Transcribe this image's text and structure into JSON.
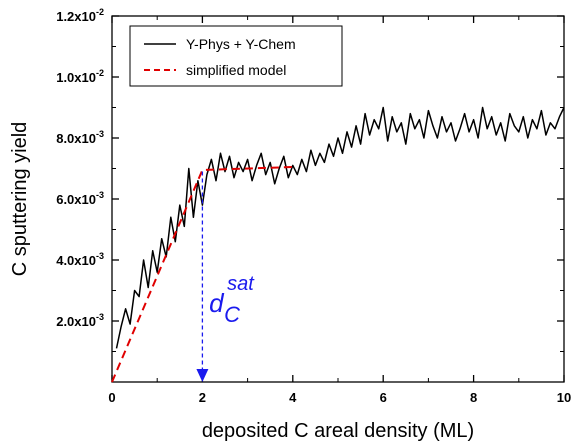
{
  "chart_data": {
    "type": "line",
    "title": "",
    "xlabel": "deposited C areal density (ML)",
    "ylabel": "C sputtering  yield",
    "xlim": [
      0,
      10
    ],
    "ylim": [
      0,
      0.012
    ],
    "x_ticks": [
      0,
      2,
      4,
      6,
      8,
      10
    ],
    "x_tick_labels": [
      "0",
      "2",
      "4",
      "6",
      "8",
      "10"
    ],
    "y_ticks": [
      0.002,
      0.004,
      0.006,
      0.008,
      0.01,
      0.012
    ],
    "y_tick_labels": [
      {
        "mantissa": "2.0x10",
        "exp": "-3"
      },
      {
        "mantissa": "4.0x10",
        "exp": "-3"
      },
      {
        "mantissa": "6.0x10",
        "exp": "-3"
      },
      {
        "mantissa": "8.0x10",
        "exp": "-3"
      },
      {
        "mantissa": "1.0x10",
        "exp": "-2"
      },
      {
        "mantissa": "1.2x10",
        "exp": "-2"
      }
    ],
    "grid": false,
    "legend_position": "top-left",
    "series": [
      {
        "name": "Y-Phys + Y-Chem",
        "color": "#000000",
        "style": "solid",
        "x": [
          0.1,
          0.2,
          0.3,
          0.4,
          0.5,
          0.6,
          0.7,
          0.8,
          0.9,
          1.0,
          1.1,
          1.2,
          1.3,
          1.4,
          1.5,
          1.6,
          1.7,
          1.8,
          1.9,
          2.0,
          2.1,
          2.2,
          2.3,
          2.4,
          2.5,
          2.6,
          2.7,
          2.8,
          2.9,
          3.0,
          3.1,
          3.2,
          3.3,
          3.4,
          3.5,
          3.6,
          3.7,
          3.8,
          3.9,
          4.0,
          4.1,
          4.2,
          4.3,
          4.4,
          4.5,
          4.6,
          4.7,
          4.8,
          4.9,
          5.0,
          5.1,
          5.2,
          5.3,
          5.4,
          5.5,
          5.6,
          5.7,
          5.8,
          5.9,
          6.0,
          6.1,
          6.2,
          6.3,
          6.4,
          6.5,
          6.6,
          6.7,
          6.8,
          6.9,
          7.0,
          7.1,
          7.2,
          7.3,
          7.4,
          7.5,
          7.6,
          7.7,
          7.8,
          7.9,
          8.0,
          8.1,
          8.2,
          8.3,
          8.4,
          8.5,
          8.6,
          8.7,
          8.8,
          8.9,
          9.0,
          9.1,
          9.2,
          9.3,
          9.4,
          9.5,
          9.6,
          9.7,
          9.8,
          9.9,
          10.0
        ],
        "y": [
          0.0011,
          0.0018,
          0.0024,
          0.0019,
          0.003,
          0.0028,
          0.004,
          0.0031,
          0.0043,
          0.0036,
          0.0047,
          0.0041,
          0.0054,
          0.0046,
          0.0058,
          0.0051,
          0.007,
          0.0054,
          0.0066,
          0.0058,
          0.0068,
          0.0073,
          0.0066,
          0.0075,
          0.0069,
          0.0074,
          0.0067,
          0.0072,
          0.0069,
          0.0073,
          0.0066,
          0.0071,
          0.0075,
          0.0068,
          0.0072,
          0.0065,
          0.007,
          0.0074,
          0.0067,
          0.0071,
          0.0068,
          0.0073,
          0.0069,
          0.0076,
          0.0071,
          0.0075,
          0.0072,
          0.0078,
          0.0074,
          0.008,
          0.0075,
          0.0082,
          0.0077,
          0.0084,
          0.0078,
          0.0088,
          0.0081,
          0.0086,
          0.0083,
          0.009,
          0.0079,
          0.0087,
          0.0082,
          0.0085,
          0.0078,
          0.0088,
          0.0083,
          0.0086,
          0.008,
          0.0089,
          0.0084,
          0.008,
          0.0087,
          0.0082,
          0.0085,
          0.0079,
          0.0083,
          0.0088,
          0.0082,
          0.0086,
          0.008,
          0.009,
          0.0083,
          0.0087,
          0.0081,
          0.0085,
          0.0079,
          0.0088,
          0.0084,
          0.0082,
          0.0087,
          0.008,
          0.0086,
          0.0083,
          0.0089,
          0.0081,
          0.0085,
          0.0083,
          0.0087,
          0.009
        ]
      },
      {
        "name": "simplified model",
        "color": "#e00000",
        "style": "dashed",
        "x": [
          0,
          2,
          4
        ],
        "y": [
          0,
          0.00695,
          0.00705
        ]
      }
    ],
    "annotations": [
      {
        "type": "arrow",
        "color": "#1a1aee",
        "style": "dashed",
        "x": 2.0,
        "y_from": 0.0069,
        "y_to": 0.0
      },
      {
        "type": "label",
        "color": "#1a1aee",
        "text": "d",
        "subscript": "C",
        "superscript": "sat",
        "x": 2.15,
        "y": 0.0023
      }
    ]
  }
}
